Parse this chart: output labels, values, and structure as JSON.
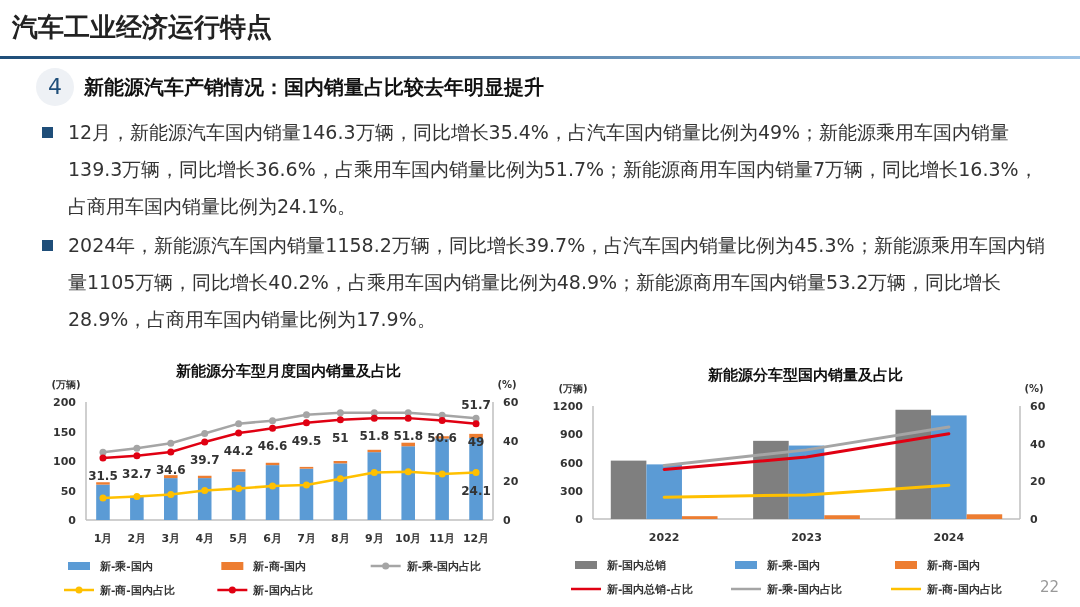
{
  "chart_data": [
    {
      "type": "other",
      "title": "汽车工业经济运行特点",
      "subtitle": "新能源汽车产销情况：国内销量占比较去年明显提升",
      "annotations": [
        "4",
        "12月，新能源汽车国内销量146.3万辆，同比增长35.4%，占汽车国内销量比例为49%；新能源乘用车国内销量139.3万辆，同比增长36.6%，占乘用车国内销量比例为51.7%；新能源商用车国内销量7万辆，同比增长16.3%，占商用车国内销量比例为24.1%。",
        "2024年，新能源汽车国内销量1158.2万辆，同比增长39.7%，占汽车国内销量比例为45.3%；新能源乘用车国内销量1105万辆，同比增长40.2%，占乘用车国内销量比例为48.9%；新能源商用车国内销量53.2万辆，同比增长28.9%，占商用车国内销量比例为17.9%。",
        "22"
      ]
    },
    {
      "type": "bar",
      "title": "新能源分车型月度国内销量及占比",
      "ylabel": "(万辆)",
      "y2label": "(%)",
      "stacked": true,
      "marker": "circle",
      "legend": "bottom",
      "categories": [
        "1月",
        "2月",
        "3月",
        "4月",
        "5月",
        "6月",
        "7月",
        "8月",
        "9月",
        "10月",
        "11月",
        "12月"
      ],
      "ylim": [
        0,
        200
      ],
      "yticks": [
        0,
        50,
        100,
        150,
        200
      ],
      "y2lim": [
        0,
        60
      ],
      "y2ticks": [
        0,
        20,
        40,
        60
      ],
      "series": [
        {
          "name": "新-乘-国内",
          "type": "bar",
          "color": "#5b9bd5",
          "values": [
            60,
            41,
            71,
            71,
            82,
            93,
            87,
            96,
            115,
            125,
            138,
            139
          ]
        },
        {
          "name": "新-商-国内",
          "type": "bar",
          "color": "#ed7d31",
          "values": [
            4,
            null,
            5,
            4,
            4,
            4,
            3,
            4,
            4,
            6,
            4,
            7
          ]
        },
        {
          "name": "新-乘-国内占比",
          "type": "line",
          "axis": "y2",
          "color": "#a5a5a5",
          "values": [
            34.5,
            36.5,
            39,
            44,
            49,
            50.5,
            53.5,
            54.5,
            54.5,
            54.5,
            53.3,
            51.7
          ],
          "value_labels": [
            null,
            null,
            null,
            null,
            null,
            null,
            null,
            null,
            null,
            null,
            null,
            "51.7"
          ]
        },
        {
          "name": "新-商-国内占比",
          "type": "line",
          "axis": "y2",
          "color": "#ffc000",
          "values": [
            11.2,
            12,
            13,
            15,
            16,
            17.3,
            17.8,
            21,
            24.2,
            24.5,
            23.4,
            24.1
          ],
          "value_labels": [
            null,
            null,
            null,
            null,
            null,
            null,
            null,
            null,
            null,
            null,
            null,
            "24.1"
          ]
        },
        {
          "name": "新-国内占比",
          "type": "line",
          "axis": "y2",
          "color": "#e00012",
          "values": [
            31.5,
            32.7,
            34.6,
            39.7,
            44.2,
            46.6,
            49.5,
            51,
            51.8,
            51.8,
            50.6,
            49
          ],
          "value_labels": [
            "31.5",
            "32.7",
            "34.6",
            "39.7",
            "44.2",
            "46.6",
            "49.5",
            "51",
            "51.8",
            "51.8",
            "50.6",
            "49"
          ]
        }
      ]
    },
    {
      "type": "bar",
      "title": "新能源分车型国内销量及占比",
      "ylabel": "(万辆)",
      "y2label": "(%)",
      "legend": "bottom",
      "categories": [
        "2022",
        "2023",
        "2024"
      ],
      "ylim": [
        0,
        1200
      ],
      "yticks": [
        0,
        300,
        600,
        900,
        1200
      ],
      "y2lim": [
        0,
        60
      ],
      "y2ticks": [
        0,
        20,
        40,
        60
      ],
      "series": [
        {
          "name": "新-国内总销",
          "type": "bar",
          "color": "#7f7f7f",
          "values": [
            620,
            830,
            1160
          ]
        },
        {
          "name": "新-乘-国内",
          "type": "bar",
          "color": "#5b9bd5",
          "values": [
            580,
            780,
            1100
          ]
        },
        {
          "name": "新-商-国内",
          "type": "bar",
          "color": "#ed7d31",
          "values": [
            30,
            40,
            50
          ]
        },
        {
          "name": "新-国内总销-占比",
          "type": "line",
          "axis": "y2",
          "color": "#e00012",
          "values": [
            26.3,
            32.9,
            45.3
          ]
        },
        {
          "name": "新-乘-国内占比",
          "type": "line",
          "axis": "y2",
          "color": "#a5a5a5",
          "values": [
            28.4,
            36.7,
            48.9
          ]
        },
        {
          "name": "新-商-国内占比",
          "type": "line",
          "axis": "y2",
          "color": "#ffc000",
          "values": [
            11.6,
            12.8,
            17.9
          ]
        }
      ]
    }
  ]
}
